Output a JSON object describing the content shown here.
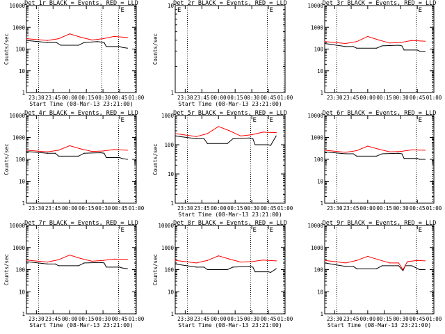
{
  "chart_data": [
    {
      "type": "line",
      "title": "Det 1r BLACK = Events, RED = LLD",
      "xlabel": "Start Time (08-Mar-13 23:21:00)",
      "ylabel": "Counts/sec",
      "yscale": "log",
      "ylim": [
        1,
        10000
      ],
      "ytick_labels": [
        "1",
        "10",
        "100",
        "1000",
        "10000"
      ],
      "xtick_labels": [
        "23:30",
        "23:45",
        "00:00",
        "00:15",
        "00:30",
        "00:45",
        "01:00"
      ],
      "xlim": [
        "23:21",
        "01:00"
      ],
      "vlines": [
        "23:32",
        "00:29",
        "00:44",
        "00:59"
      ],
      "bracket_labels": [
        "E"
      ],
      "series": [
        {
          "name": "Events",
          "color": "#000000",
          "data": [
            [
              "23:21",
              250
            ],
            [
              "23:40",
              200
            ],
            [
              "23:48",
              200
            ],
            [
              "23:52",
              150
            ],
            [
              "00:08",
              150
            ],
            [
              "00:13",
              200
            ],
            [
              "00:25",
              220
            ],
            [
              "00:31",
              200
            ],
            [
              "00:33",
              130
            ],
            [
              "00:45",
              130
            ],
            [
              "00:47",
              120
            ],
            [
              "00:52",
              110
            ]
          ]
        },
        {
          "name": "LLD",
          "color": "#ff0000",
          "data": [
            [
              "23:21",
              300
            ],
            [
              "23:40",
              250
            ],
            [
              "23:50",
              300
            ],
            [
              "00:00",
              500
            ],
            [
              "00:10",
              350
            ],
            [
              "00:20",
              260
            ],
            [
              "00:30",
              300
            ],
            [
              "00:40",
              380
            ],
            [
              "00:52",
              340
            ]
          ]
        }
      ]
    },
    {
      "type": "line",
      "title": "Det 2r BLACK = Events, RED = LLD",
      "xlabel": "Start Time (08-Mar-13 23:21:00)",
      "ylabel": "Counts/sec",
      "yscale": "log",
      "ylim": [
        1,
        10
      ],
      "ytick_labels": [
        "1",
        "10"
      ],
      "xtick_labels": [
        "23:30",
        "23:45",
        "00:00",
        "00:15",
        "00:30",
        "00:45",
        "01:00"
      ],
      "xlim": [
        "23:21",
        "01:00"
      ],
      "vlines": [
        "23:32",
        "00:44",
        "00:59"
      ],
      "bracket_labels": [
        "E",
        "E"
      ],
      "series": []
    },
    {
      "type": "line",
      "title": "Det 3r BLACK = Events, RED = LLD",
      "xlabel": "",
      "ylabel": "",
      "yscale": "log",
      "ylim": [
        1,
        10000
      ],
      "ytick_labels": [
        "1",
        "10",
        "100",
        "1000",
        "10000"
      ],
      "xtick_labels": [
        "23:30",
        "23:45",
        "00:00",
        "00:15",
        "00:30",
        "00:45",
        "01:00"
      ],
      "xlim": [
        "23:21",
        "01:00"
      ],
      "vlines": [
        "23:32",
        "00:44",
        "00:59"
      ],
      "bracket_labels": [
        "E"
      ],
      "series": [
        {
          "name": "Events",
          "color": "#000000",
          "data": [
            [
              "23:21",
              180
            ],
            [
              "23:40",
              130
            ],
            [
              "23:47",
              130
            ],
            [
              "23:50",
              110
            ],
            [
              "00:08",
              110
            ],
            [
              "00:13",
              140
            ],
            [
              "00:28",
              150
            ],
            [
              "00:31",
              140
            ],
            [
              "00:33",
              90
            ],
            [
              "00:45",
              90
            ],
            [
              "00:47",
              80
            ],
            [
              "00:52",
              75
            ]
          ]
        },
        {
          "name": "LLD",
          "color": "#ff0000",
          "data": [
            [
              "23:21",
              220
            ],
            [
              "23:40",
              180
            ],
            [
              "23:50",
              220
            ],
            [
              "00:00",
              380
            ],
            [
              "00:10",
              260
            ],
            [
              "00:20",
              190
            ],
            [
              "00:30",
              200
            ],
            [
              "00:40",
              250
            ],
            [
              "00:52",
              230
            ]
          ]
        }
      ]
    },
    {
      "type": "line",
      "title": "Det 4r BLACK = Events, RED = LLD",
      "xlabel": "",
      "ylabel": "Counts/sec",
      "yscale": "log",
      "ylim": [
        1,
        10000
      ],
      "ytick_labels": [
        "1",
        "10",
        "100",
        "1000",
        "10000"
      ],
      "xtick_labels": [
        "23:30",
        "23:45",
        "00:00",
        "00:15",
        "00:30",
        "00:45",
        "01:00"
      ],
      "xlim": [
        "23:21",
        "01:00"
      ],
      "vlines": [
        "23:32",
        "00:44",
        "00:59"
      ],
      "bracket_labels": [
        "E"
      ],
      "series": [
        {
          "name": "Events",
          "color": "#000000",
          "data": [
            [
              "23:21",
              230
            ],
            [
              "23:40",
              190
            ],
            [
              "23:47",
              190
            ],
            [
              "23:50",
              140
            ],
            [
              "00:08",
              140
            ],
            [
              "00:13",
              190
            ],
            [
              "00:28",
              200
            ],
            [
              "00:31",
              190
            ],
            [
              "00:33",
              120
            ],
            [
              "00:45",
              120
            ],
            [
              "00:47",
              110
            ],
            [
              "00:52",
              100
            ]
          ]
        },
        {
          "name": "LLD",
          "color": "#ff0000",
          "data": [
            [
              "23:21",
              260
            ],
            [
              "23:40",
              220
            ],
            [
              "23:50",
              260
            ],
            [
              "00:00",
              420
            ],
            [
              "00:10",
              300
            ],
            [
              "00:20",
              230
            ],
            [
              "00:30",
              240
            ],
            [
              "00:40",
              280
            ],
            [
              "00:52",
              260
            ]
          ]
        }
      ]
    },
    {
      "type": "line",
      "title": "Det 5r BLACK = Events, RED = LLD",
      "xlabel": "Start Time (08-Mar-13 23:21:00)",
      "ylabel": "Counts/sec",
      "yscale": "log",
      "ylim": [
        1,
        1000
      ],
      "ytick_labels": [
        "1",
        "10",
        "100",
        "1000"
      ],
      "xtick_labels": [
        "23:30",
        "23:45",
        "00:00",
        "00:15",
        "00:30",
        "00:45",
        "01:00"
      ],
      "xlim": [
        "23:21",
        "01:00"
      ],
      "vlines": [
        "23:32",
        "00:29",
        "00:44",
        "00:59"
      ],
      "bracket_labels": [
        "E",
        "E"
      ],
      "series": [
        {
          "name": "Events",
          "color": "#000000",
          "data": [
            [
              "23:21",
              200
            ],
            [
              "23:40",
              160
            ],
            [
              "23:47",
              160
            ],
            [
              "23:50",
              110
            ],
            [
              "00:08",
              110
            ],
            [
              "00:13",
              160
            ],
            [
              "00:28",
              170
            ],
            [
              "00:31",
              160
            ],
            [
              "00:33",
              100
            ],
            [
              "00:45",
              100
            ],
            [
              "00:47",
              95
            ],
            [
              "00:52",
              200
            ]
          ]
        },
        {
          "name": "LLD",
          "color": "#ff0000",
          "data": [
            [
              "23:21",
              240
            ],
            [
              "23:40",
              190
            ],
            [
              "23:50",
              240
            ],
            [
              "00:00",
              420
            ],
            [
              "00:10",
              300
            ],
            [
              "00:20",
              200
            ],
            [
              "00:30",
              220
            ],
            [
              "00:40",
              270
            ],
            [
              "00:52",
              260
            ]
          ]
        }
      ]
    },
    {
      "type": "line",
      "title": "Det 6r BLACK = Events, RED = LLD",
      "xlabel": "",
      "ylabel": "",
      "yscale": "log",
      "ylim": [
        1,
        10000
      ],
      "ytick_labels": [
        "1",
        "10",
        "100",
        "1000",
        "10000"
      ],
      "xtick_labels": [
        "23:30",
        "23:45",
        "00:00",
        "00:15",
        "00:30",
        "00:45",
        "01:00"
      ],
      "xlim": [
        "23:21",
        "01:00"
      ],
      "vlines": [
        "23:32",
        "00:44",
        "00:59"
      ],
      "bracket_labels": [
        "E"
      ],
      "series": [
        {
          "name": "Events",
          "color": "#000000",
          "data": [
            [
              "23:21",
              220
            ],
            [
              "23:40",
              180
            ],
            [
              "23:47",
              180
            ],
            [
              "23:50",
              140
            ],
            [
              "00:08",
              140
            ],
            [
              "00:13",
              180
            ],
            [
              "00:28",
              190
            ],
            [
              "00:31",
              180
            ],
            [
              "00:33",
              110
            ],
            [
              "00:45",
              110
            ],
            [
              "00:47",
              100
            ],
            [
              "00:52",
              100
            ]
          ]
        },
        {
          "name": "LLD",
          "color": "#ff0000",
          "data": [
            [
              "23:21",
              260
            ],
            [
              "23:40",
              210
            ],
            [
              "23:50",
              250
            ],
            [
              "00:00",
              400
            ],
            [
              "00:10",
              290
            ],
            [
              "00:20",
              220
            ],
            [
              "00:30",
              230
            ],
            [
              "00:40",
              270
            ],
            [
              "00:52",
              260
            ]
          ]
        }
      ]
    },
    {
      "type": "line",
      "title": "Det 7r BLACK = Events, RED = LLD",
      "xlabel": "Start Time (08-Mar-13 23:21:00)",
      "ylabel": "Counts/sec",
      "yscale": "log",
      "ylim": [
        1,
        10000
      ],
      "ytick_labels": [
        "1",
        "10",
        "100",
        "1000",
        "10000"
      ],
      "xtick_labels": [
        "23:30",
        "23:45",
        "00:00",
        "00:15",
        "00:30",
        "00:45",
        "01:00"
      ],
      "xlim": [
        "23:21",
        "01:00"
      ],
      "vlines": [
        "23:32",
        "00:44",
        "00:59"
      ],
      "bracket_labels": [
        "E"
      ],
      "series": [
        {
          "name": "Events",
          "color": "#000000",
          "data": [
            [
              "23:21",
              230
            ],
            [
              "23:40",
              180
            ],
            [
              "23:47",
              180
            ],
            [
              "23:50",
              150
            ],
            [
              "00:08",
              150
            ],
            [
              "00:13",
              200
            ],
            [
              "00:28",
              210
            ],
            [
              "00:31",
              200
            ],
            [
              "00:33",
              130
            ],
            [
              "00:45",
              130
            ],
            [
              "00:47",
              120
            ],
            [
              "00:52",
              110
            ]
          ]
        },
        {
          "name": "LLD",
          "color": "#ff0000",
          "data": [
            [
              "23:21",
              270
            ],
            [
              "23:40",
              220
            ],
            [
              "23:50",
              280
            ],
            [
              "00:00",
              460
            ],
            [
              "00:10",
              320
            ],
            [
              "00:20",
              240
            ],
            [
              "00:30",
              260
            ],
            [
              "00:40",
              300
            ],
            [
              "00:52",
              290
            ]
          ]
        }
      ]
    },
    {
      "type": "line",
      "title": "Det 8r BLACK = Events, RED = LLD",
      "xlabel": "Start Time (08-Mar-13 23:21:00)",
      "ylabel": "Counts/sec",
      "yscale": "log",
      "ylim": [
        1,
        10000
      ],
      "ytick_labels": [
        "1",
        "10",
        "100",
        "1000",
        "10000"
      ],
      "xtick_labels": [
        "23:30",
        "23:45",
        "00:00",
        "00:15",
        "00:30",
        "00:45",
        "01:00"
      ],
      "xlim": [
        "23:21",
        "01:00"
      ],
      "vlines": [
        "23:32",
        "00:29",
        "00:44",
        "00:59"
      ],
      "bracket_labels": [
        "E",
        "E"
      ],
      "series": [
        {
          "name": "Events",
          "color": "#000000",
          "data": [
            [
              "23:21",
              180
            ],
            [
              "23:40",
              130
            ],
            [
              "23:47",
              130
            ],
            [
              "23:50",
              100
            ],
            [
              "00:08",
              100
            ],
            [
              "00:13",
              130
            ],
            [
              "00:28",
              140
            ],
            [
              "00:31",
              130
            ],
            [
              "00:33",
              80
            ],
            [
              "00:45",
              80
            ],
            [
              "00:47",
              75
            ],
            [
              "00:52",
              110
            ]
          ]
        },
        {
          "name": "LLD",
          "color": "#ff0000",
          "data": [
            [
              "23:21",
              260
            ],
            [
              "23:40",
              200
            ],
            [
              "23:50",
              260
            ],
            [
              "00:00",
              420
            ],
            [
              "00:10",
              300
            ],
            [
              "00:20",
              220
            ],
            [
              "00:30",
              230
            ],
            [
              "00:40",
              270
            ],
            [
              "00:52",
              250
            ]
          ]
        }
      ]
    },
    {
      "type": "line",
      "title": "Det 9r BLACK = Events, RED = LLD",
      "xlabel": "Start Time (08-Mar-13 23:21:00)",
      "ylabel": "",
      "yscale": "log",
      "ylim": [
        1,
        10000
      ],
      "ytick_labels": [
        "1",
        "10",
        "100",
        "1000",
        "10000"
      ],
      "xtick_labels": [
        "23:30",
        "23:45",
        "00:00",
        "00:15",
        "00:30",
        "00:45",
        "01:00"
      ],
      "xlim": [
        "23:21",
        "01:00"
      ],
      "vlines": [
        "23:32",
        "00:44",
        "00:59"
      ],
      "bracket_labels": [
        "E"
      ],
      "series": [
        {
          "name": "Events",
          "color": "#000000",
          "data": [
            [
              "23:21",
              200
            ],
            [
              "23:40",
              140
            ],
            [
              "23:47",
              140
            ],
            [
              "23:50",
              110
            ],
            [
              "00:08",
              110
            ],
            [
              "00:13",
              150
            ],
            [
              "00:28",
              150
            ],
            [
              "00:32",
              90
            ],
            [
              "00:34",
              150
            ],
            [
              "00:40",
              150
            ],
            [
              "00:47",
              100
            ],
            [
              "00:52",
              100
            ]
          ]
        },
        {
          "name": "LLD",
          "color": "#ff0000",
          "data": [
            [
              "23:21",
              260
            ],
            [
              "23:40",
              200
            ],
            [
              "23:50",
              260
            ],
            [
              "00:00",
              400
            ],
            [
              "00:10",
              280
            ],
            [
              "00:20",
              200
            ],
            [
              "00:28",
              200
            ],
            [
              "00:32",
              100
            ],
            [
              "00:36",
              230
            ],
            [
              "00:45",
              260
            ],
            [
              "00:52",
              250
            ]
          ]
        }
      ]
    }
  ]
}
